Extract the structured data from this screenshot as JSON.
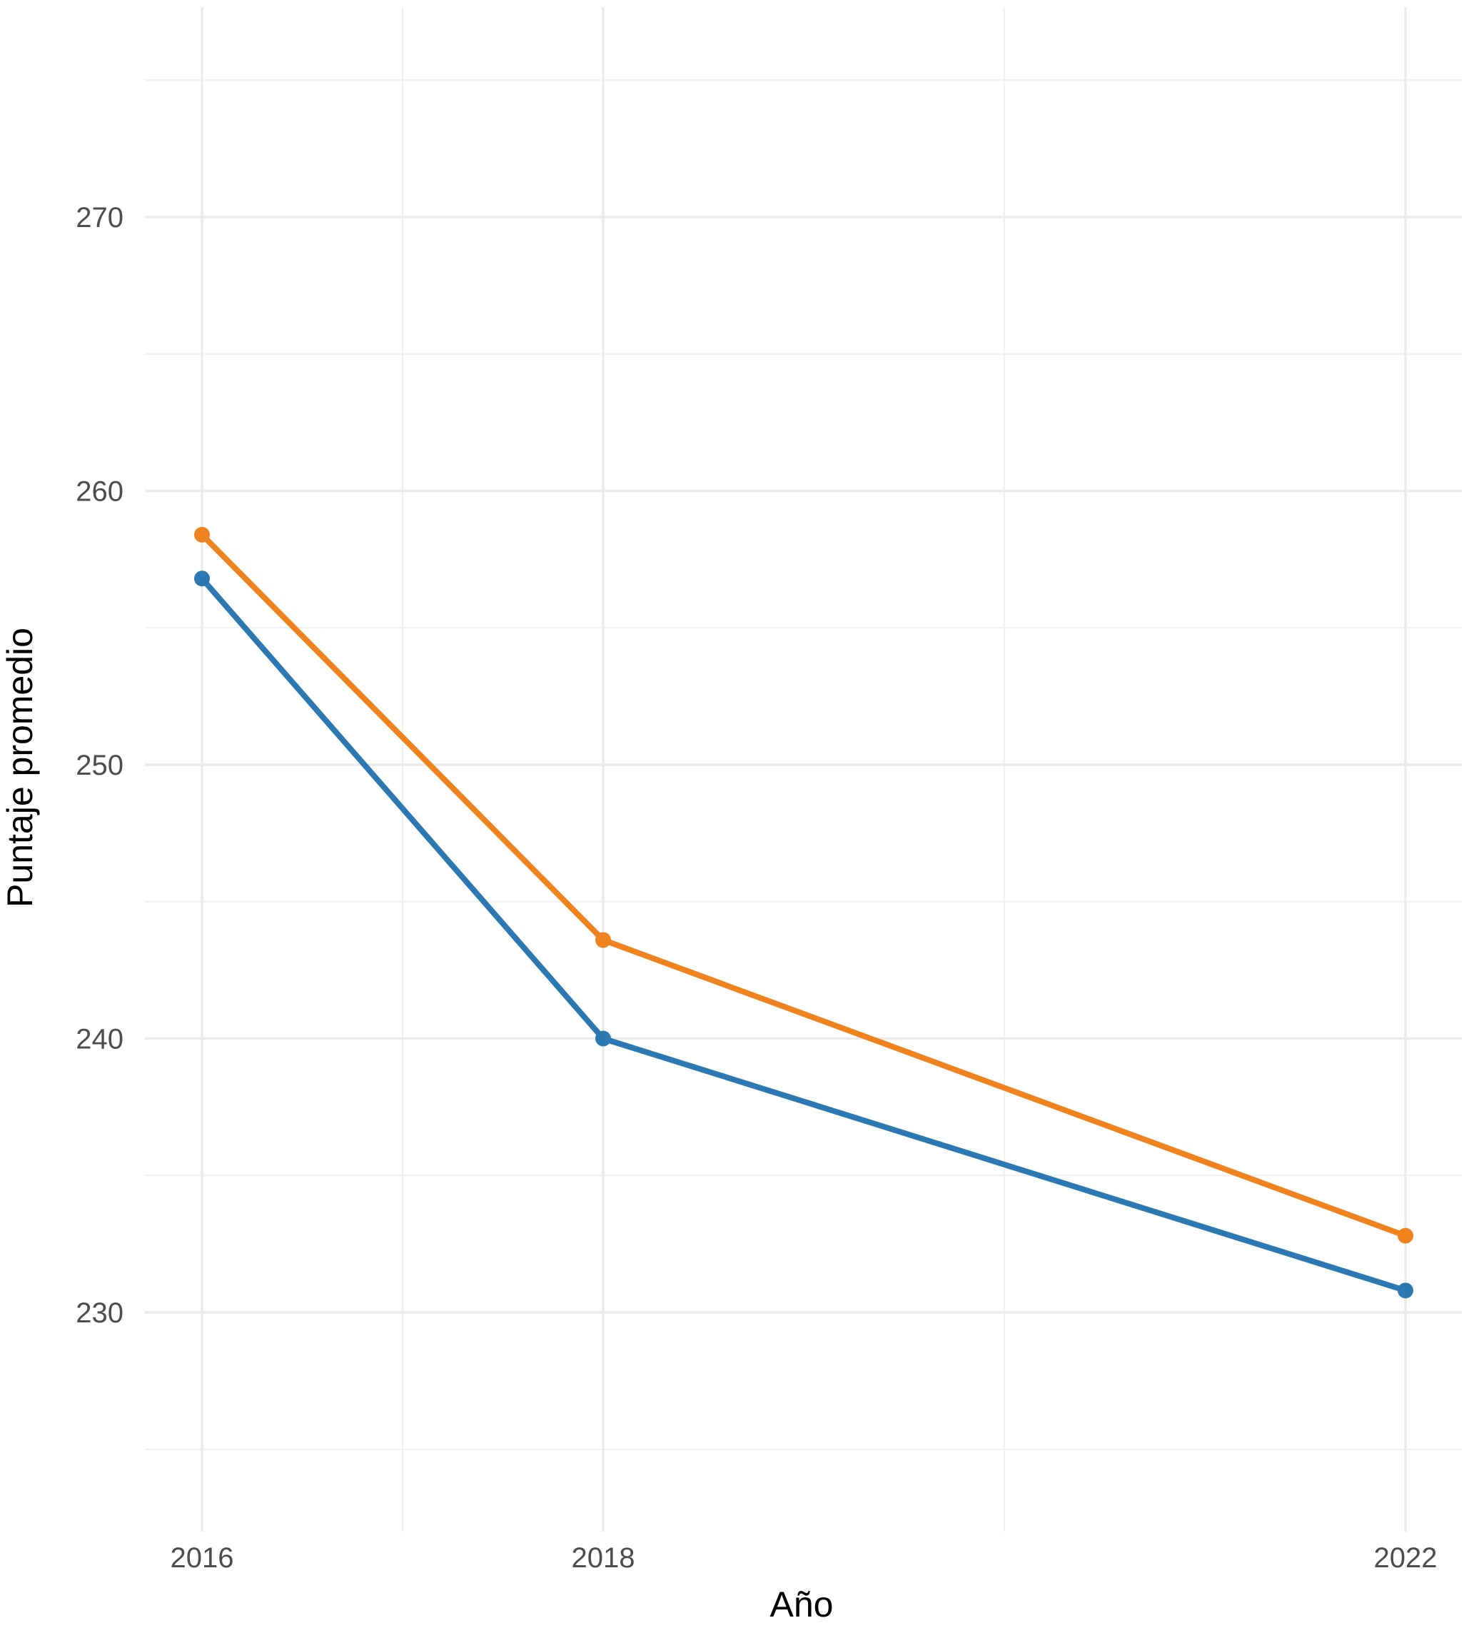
{
  "chart_data": {
    "type": "line",
    "title": "",
    "xlabel": "Año",
    "ylabel": "Puntaje promedio",
    "x": [
      2016,
      2018,
      2022
    ],
    "x_ticks": [
      "2016",
      "2018",
      "2022"
    ],
    "y_ticks": [
      "230",
      "240",
      "250",
      "260",
      "270"
    ],
    "xlim": [
      2015.7,
      2022.3
    ],
    "ylim": [
      224.5,
      275.5
    ],
    "grid": true,
    "legend": "none",
    "series": [
      {
        "color": "#f0821e",
        "values": [
          258.4,
          243.6,
          232.8
        ]
      },
      {
        "color": "#2b78b2",
        "values": [
          256.8,
          240.0,
          230.8
        ]
      }
    ]
  }
}
